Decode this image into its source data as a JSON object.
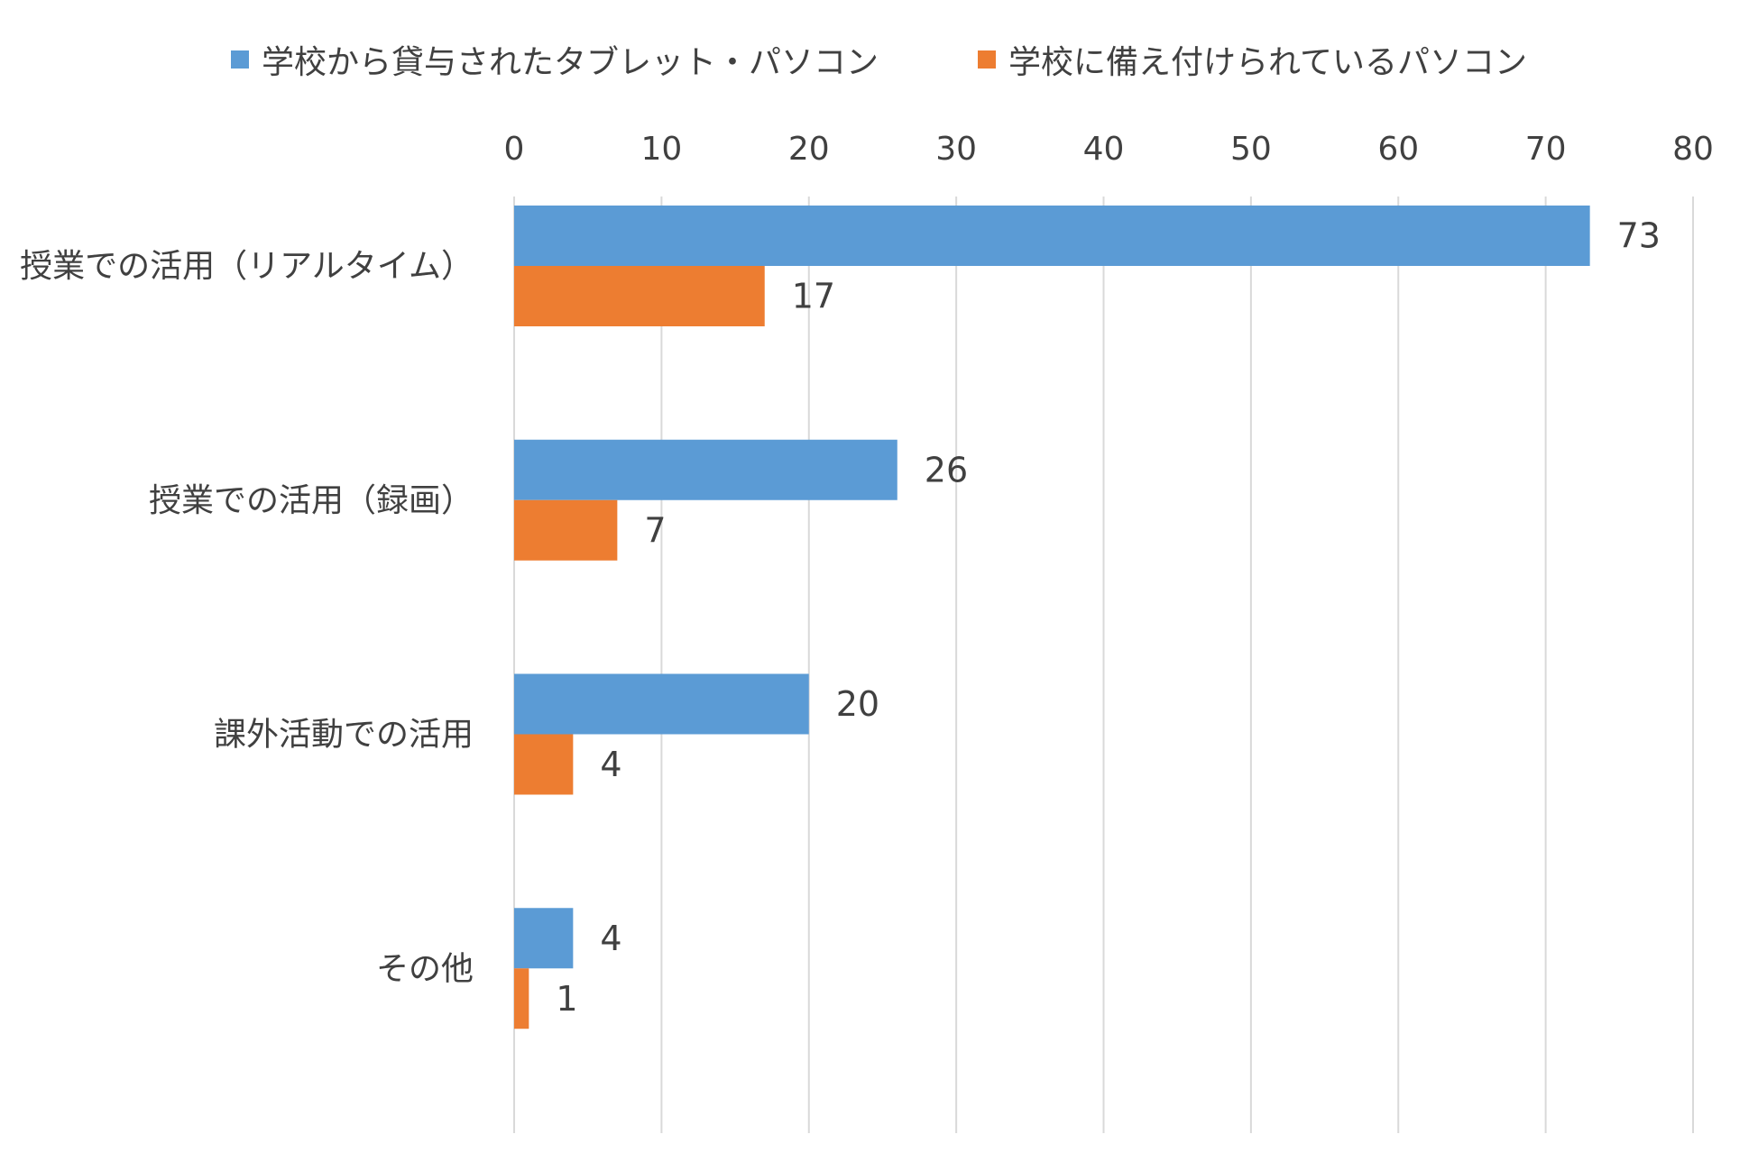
{
  "chart_data": {
    "type": "bar",
    "orientation": "horizontal",
    "categories": [
      "授業での活用（リアルタイム）",
      "授業での活用（録画）",
      "課外活動での活用",
      "その他"
    ],
    "series": [
      {
        "name": "学校から貸与されたタブレット・パソコン",
        "color": "#5B9BD5",
        "values": [
          73,
          26,
          20,
          4
        ]
      },
      {
        "name": "学校に備え付けられているパソコン",
        "color": "#ED7D31",
        "values": [
          17,
          7,
          4,
          1
        ]
      }
    ],
    "title": "",
    "xlabel": "",
    "ylabel": "",
    "xlim": [
      0,
      80
    ],
    "xticks": [
      "0",
      "10",
      "20",
      "30",
      "40",
      "50",
      "60",
      "70",
      "80"
    ],
    "x_axis_position": "top",
    "grid": true,
    "gridline_color": "#D9D9D9",
    "legend_position": "top",
    "data_labels": true
  }
}
